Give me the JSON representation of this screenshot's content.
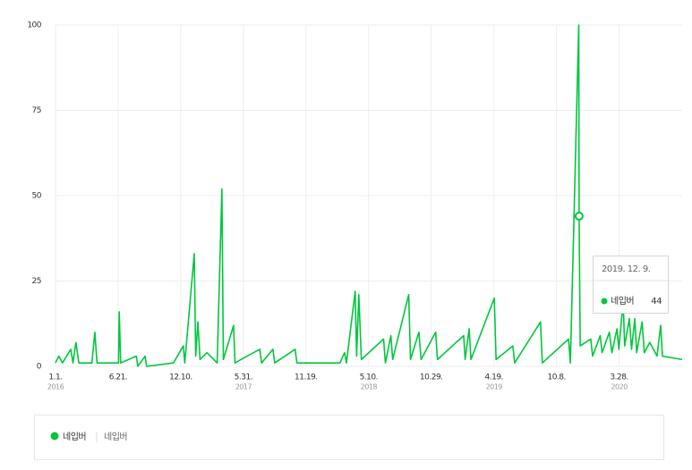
{
  "chart_data": {
    "type": "line",
    "x": [
      "2016-01-01",
      "2016-01-10",
      "2016-01-20",
      "2016-02-12",
      "2016-02-18",
      "2016-02-26",
      "2016-03-05",
      "2016-04-10",
      "2016-04-18",
      "2016-04-24",
      "2016-06-22",
      "2016-06-24",
      "2016-06-28",
      "2016-08-10",
      "2016-08-14",
      "2016-09-03",
      "2016-09-07",
      "2016-11-20",
      "2016-12-17",
      "2016-12-21",
      "2017-01-16",
      "2017-01-20",
      "2017-01-26",
      "2017-02-01",
      "2017-02-20",
      "2017-03-20",
      "2017-04-02",
      "2017-04-06",
      "2017-05-04",
      "2017-05-08",
      "2017-06-10",
      "2017-07-15",
      "2017-07-20",
      "2017-08-20",
      "2017-08-25",
      "2017-10-20",
      "2017-10-25",
      "2018-02-20",
      "2018-03-05",
      "2018-03-10",
      "2018-04-03",
      "2018-04-07",
      "2018-04-13",
      "2018-04-20",
      "2018-06-20",
      "2018-06-25",
      "2018-07-10",
      "2018-07-15",
      "2018-08-28",
      "2018-09-02",
      "2018-09-25",
      "2018-10-01",
      "2018-11-10",
      "2018-11-15",
      "2019-01-26",
      "2019-01-30",
      "2019-02-10",
      "2019-02-15",
      "2019-04-20",
      "2019-04-25",
      "2019-06-10",
      "2019-06-15",
      "2019-08-25",
      "2019-08-30",
      "2019-11-10",
      "2019-11-15",
      "2019-12-08",
      "2019-12-09",
      "2019-12-12",
      "2020-01-10",
      "2020-01-15",
      "2020-02-05",
      "2020-02-10",
      "2020-03-01",
      "2020-03-08",
      "2020-03-22",
      "2020-03-27",
      "2020-04-08",
      "2020-04-12",
      "2020-04-25",
      "2020-05-01",
      "2020-05-10",
      "2020-05-15",
      "2020-05-30",
      "2020-06-05",
      "2020-06-20",
      "2020-07-10",
      "2020-07-20",
      "2020-07-25",
      "2020-09-17"
    ],
    "series": [
      {
        "name": "네입버",
        "color": "#00c73c",
        "values": [
          1,
          3,
          1,
          5,
          1,
          7,
          1,
          1,
          10,
          1,
          1,
          16,
          1,
          3,
          0,
          3,
          0,
          1,
          6,
          1,
          33,
          3,
          13,
          2,
          4,
          1,
          52,
          2,
          12,
          1,
          3,
          5,
          1,
          5,
          1,
          5,
          1,
          1,
          4,
          1,
          22,
          3,
          21,
          2,
          8,
          1,
          9,
          2,
          21,
          2,
          10,
          2,
          10,
          2,
          9,
          2,
          11,
          2,
          20,
          2,
          6,
          1,
          13,
          1,
          8,
          1,
          100,
          44,
          6,
          8,
          3,
          9,
          4,
          10,
          4,
          11,
          5,
          19,
          6,
          14,
          5,
          14,
          4,
          13,
          4,
          7,
          3,
          12,
          3,
          2
        ]
      }
    ],
    "xlim": [
      "2016-01-01",
      "2020-09-17"
    ],
    "xticks": [
      {
        "value": "2016-01-01",
        "label": "1.1.",
        "year": "2016"
      },
      {
        "value": "2016-06-21",
        "label": "6.21."
      },
      {
        "value": "2016-12-10",
        "label": "12.10."
      },
      {
        "value": "2017-05-31",
        "label": "5.31.",
        "year": "2017"
      },
      {
        "value": "2017-11-19",
        "label": "11.19."
      },
      {
        "value": "2018-05-10",
        "label": "5.10.",
        "year": "2018"
      },
      {
        "value": "2018-10-29",
        "label": "10.29."
      },
      {
        "value": "2019-04-19",
        "label": "4.19.",
        "year": "2019"
      },
      {
        "value": "2019-10-08",
        "label": "10.8."
      },
      {
        "value": "2020-03-28",
        "label": "3.28.",
        "year": "2020"
      }
    ],
    "ylim": [
      0,
      100
    ],
    "yticks": [
      0,
      25,
      50,
      75,
      100
    ],
    "grid": true,
    "tooltip": {
      "date": "2019. 12. 9."
    },
    "legend": {
      "keyword": "네입버"
    }
  }
}
